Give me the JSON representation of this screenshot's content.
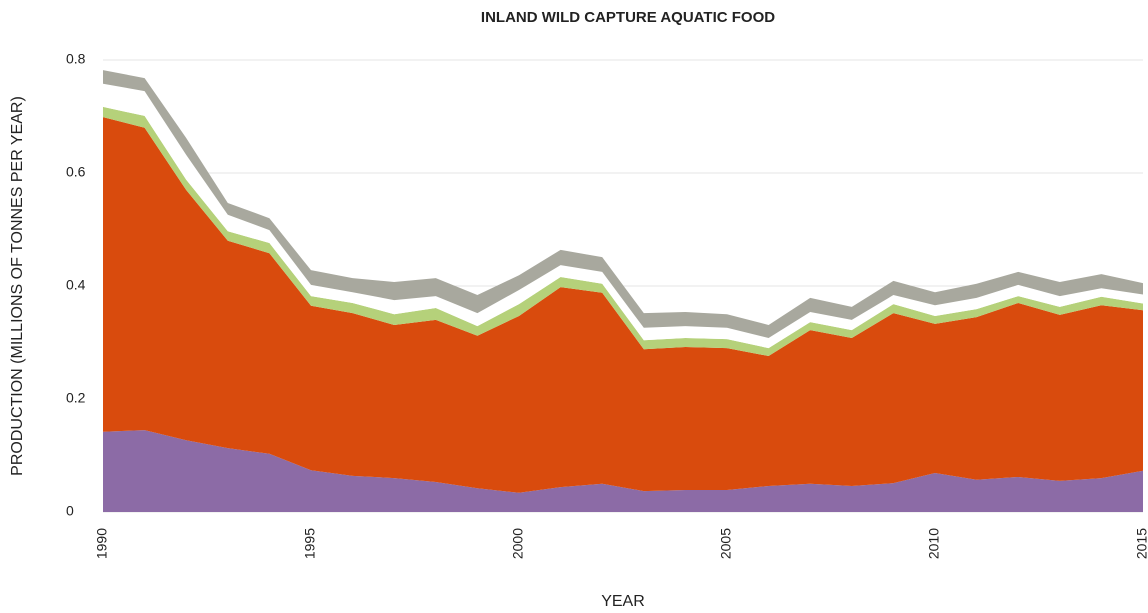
{
  "chart_data": {
    "type": "stacked_area",
    "title": "INLAND WILD CAPTURE AQUATIC FOOD",
    "xlabel": "YEAR",
    "ylabel": "PRODUCTION (MILLIONS OF TONNES PER YEAR)",
    "x": [
      1990,
      1991,
      1992,
      1993,
      1994,
      1995,
      1996,
      1997,
      1998,
      1999,
      2000,
      2001,
      2002,
      2003,
      2004,
      2005,
      2006,
      2007,
      2008,
      2009,
      2010,
      2011,
      2012,
      2013,
      2014,
      2015
    ],
    "xlim": [
      1990,
      2015
    ],
    "xticks": [
      1990,
      1995,
      2000,
      2005,
      2010,
      2015
    ],
    "ylim": [
      0,
      0.8
    ],
    "yticks": [
      0,
      0.2,
      0.4,
      0.6,
      0.8
    ],
    "grid": true,
    "series": [
      {
        "color": "#8c6ba6",
        "values": [
          0.142,
          0.145,
          0.127,
          0.113,
          0.103,
          0.074,
          0.064,
          0.06,
          0.053,
          0.042,
          0.034,
          0.044,
          0.05,
          0.037,
          0.039,
          0.039,
          0.046,
          0.05,
          0.046,
          0.051,
          0.069,
          0.057,
          0.062,
          0.055,
          0.06,
          0.073
        ]
      },
      {
        "color": "#d94b0d",
        "values": [
          0.557,
          0.535,
          0.443,
          0.367,
          0.355,
          0.291,
          0.288,
          0.271,
          0.287,
          0.27,
          0.313,
          0.354,
          0.338,
          0.251,
          0.253,
          0.251,
          0.23,
          0.272,
          0.262,
          0.301,
          0.264,
          0.288,
          0.308,
          0.294,
          0.306,
          0.284
        ]
      },
      {
        "color": "#b5d17a",
        "values": [
          0.018,
          0.021,
          0.018,
          0.017,
          0.018,
          0.017,
          0.018,
          0.019,
          0.021,
          0.017,
          0.021,
          0.018,
          0.016,
          0.016,
          0.016,
          0.016,
          0.014,
          0.014,
          0.014,
          0.016,
          0.014,
          0.014,
          0.012,
          0.014,
          0.015,
          0.012
        ]
      },
      {
        "color": "#ffffff",
        "values": [
          0.041,
          0.044,
          0.044,
          0.029,
          0.023,
          0.02,
          0.019,
          0.025,
          0.021,
          0.023,
          0.025,
          0.021,
          0.021,
          0.022,
          0.021,
          0.02,
          0.018,
          0.018,
          0.018,
          0.016,
          0.019,
          0.02,
          0.02,
          0.019,
          0.015,
          0.016
        ]
      },
      {
        "color": "#a8a89e",
        "values": [
          0.024,
          0.023,
          0.03,
          0.021,
          0.021,
          0.026,
          0.025,
          0.032,
          0.032,
          0.032,
          0.026,
          0.027,
          0.026,
          0.026,
          0.025,
          0.024,
          0.023,
          0.025,
          0.023,
          0.025,
          0.023,
          0.025,
          0.023,
          0.025,
          0.025,
          0.02
        ]
      }
    ]
  }
}
